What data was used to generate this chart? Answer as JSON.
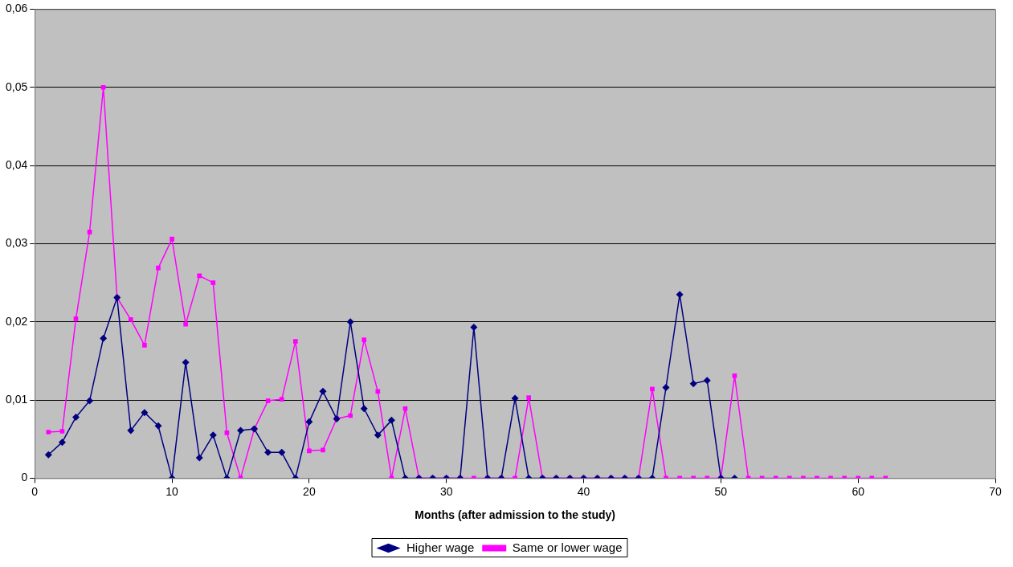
{
  "chart_data": {
    "type": "line",
    "xlabel": "Months (after admission to the study)",
    "xlim": [
      0,
      70
    ],
    "xticks": [
      0,
      10,
      20,
      30,
      40,
      50,
      60,
      70
    ],
    "ylim": [
      0,
      0.06
    ],
    "yticks": [
      {
        "value": 0,
        "label": "0"
      },
      {
        "value": 0.01,
        "label": "0,01"
      },
      {
        "value": 0.02,
        "label": "0,02"
      },
      {
        "value": 0.03,
        "label": "0,03"
      },
      {
        "value": 0.04,
        "label": "0,04"
      },
      {
        "value": 0.05,
        "label": "0,05"
      },
      {
        "value": 0.06,
        "label": "0,06"
      }
    ],
    "grid": "y",
    "legend": "bottom",
    "series": [
      {
        "name": "Higher wage",
        "color": "#000080",
        "marker": "diamond",
        "x": [
          1,
          2,
          3,
          4,
          5,
          6,
          7,
          8,
          9,
          10,
          11,
          12,
          13,
          14,
          15,
          16,
          17,
          18,
          19,
          20,
          21,
          22,
          23,
          24,
          25,
          26,
          27,
          28,
          29,
          30,
          31,
          32,
          33,
          34,
          35,
          36,
          37,
          38,
          39,
          40,
          41,
          42,
          43,
          44,
          45,
          46,
          47,
          48,
          49,
          50,
          51
        ],
        "values": [
          0.003,
          0.0046,
          0.0078,
          0.0099,
          0.0179,
          0.0231,
          0.0061,
          0.0084,
          0.0067,
          0,
          0.0148,
          0.0026,
          0.0055,
          0,
          0.0061,
          0.0063,
          0.0033,
          0.0033,
          0,
          0.0072,
          0.0111,
          0.0076,
          0.02,
          0.0089,
          0.0055,
          0.0074,
          0,
          0,
          0,
          0,
          0,
          0.0193,
          0,
          0,
          0.0102,
          0,
          0,
          0,
          0,
          0,
          0,
          0,
          0,
          0,
          0,
          0.0116,
          0.0235,
          0.0121,
          0.0125,
          0,
          0
        ]
      },
      {
        "name": "Same or lower wage",
        "color": "#ff00ff",
        "marker": "square",
        "x": [
          1,
          2,
          3,
          4,
          5,
          6,
          7,
          8,
          9,
          10,
          11,
          12,
          13,
          14,
          15,
          16,
          17,
          18,
          19,
          20,
          21,
          22,
          23,
          24,
          25,
          26,
          27,
          28,
          29,
          30,
          31,
          32,
          33,
          34,
          35,
          36,
          37,
          38,
          39,
          40,
          41,
          42,
          43,
          44,
          45,
          46,
          47,
          48,
          49,
          50,
          51,
          52,
          53,
          54,
          55,
          56,
          57,
          58,
          59,
          60,
          61,
          62
        ],
        "values": [
          0.0059,
          0.006,
          0.0204,
          0.0315,
          0.05,
          0.0231,
          0.0203,
          0.017,
          0.0269,
          0.0306,
          0.0197,
          0.0259,
          0.025,
          0.0058,
          0,
          0.0063,
          0.0099,
          0.0101,
          0.0175,
          0.0035,
          0.0036,
          0.0076,
          0.008,
          0.0177,
          0.0111,
          0,
          0.0089,
          0,
          0,
          0,
          0,
          0,
          0,
          0,
          0,
          0.0103,
          0,
          0,
          0,
          0,
          0,
          0,
          0,
          0,
          0.0114,
          0,
          0,
          0,
          0,
          0,
          0.0131,
          0,
          0,
          0,
          0,
          0,
          0,
          0,
          0,
          0,
          0,
          0
        ]
      }
    ]
  }
}
